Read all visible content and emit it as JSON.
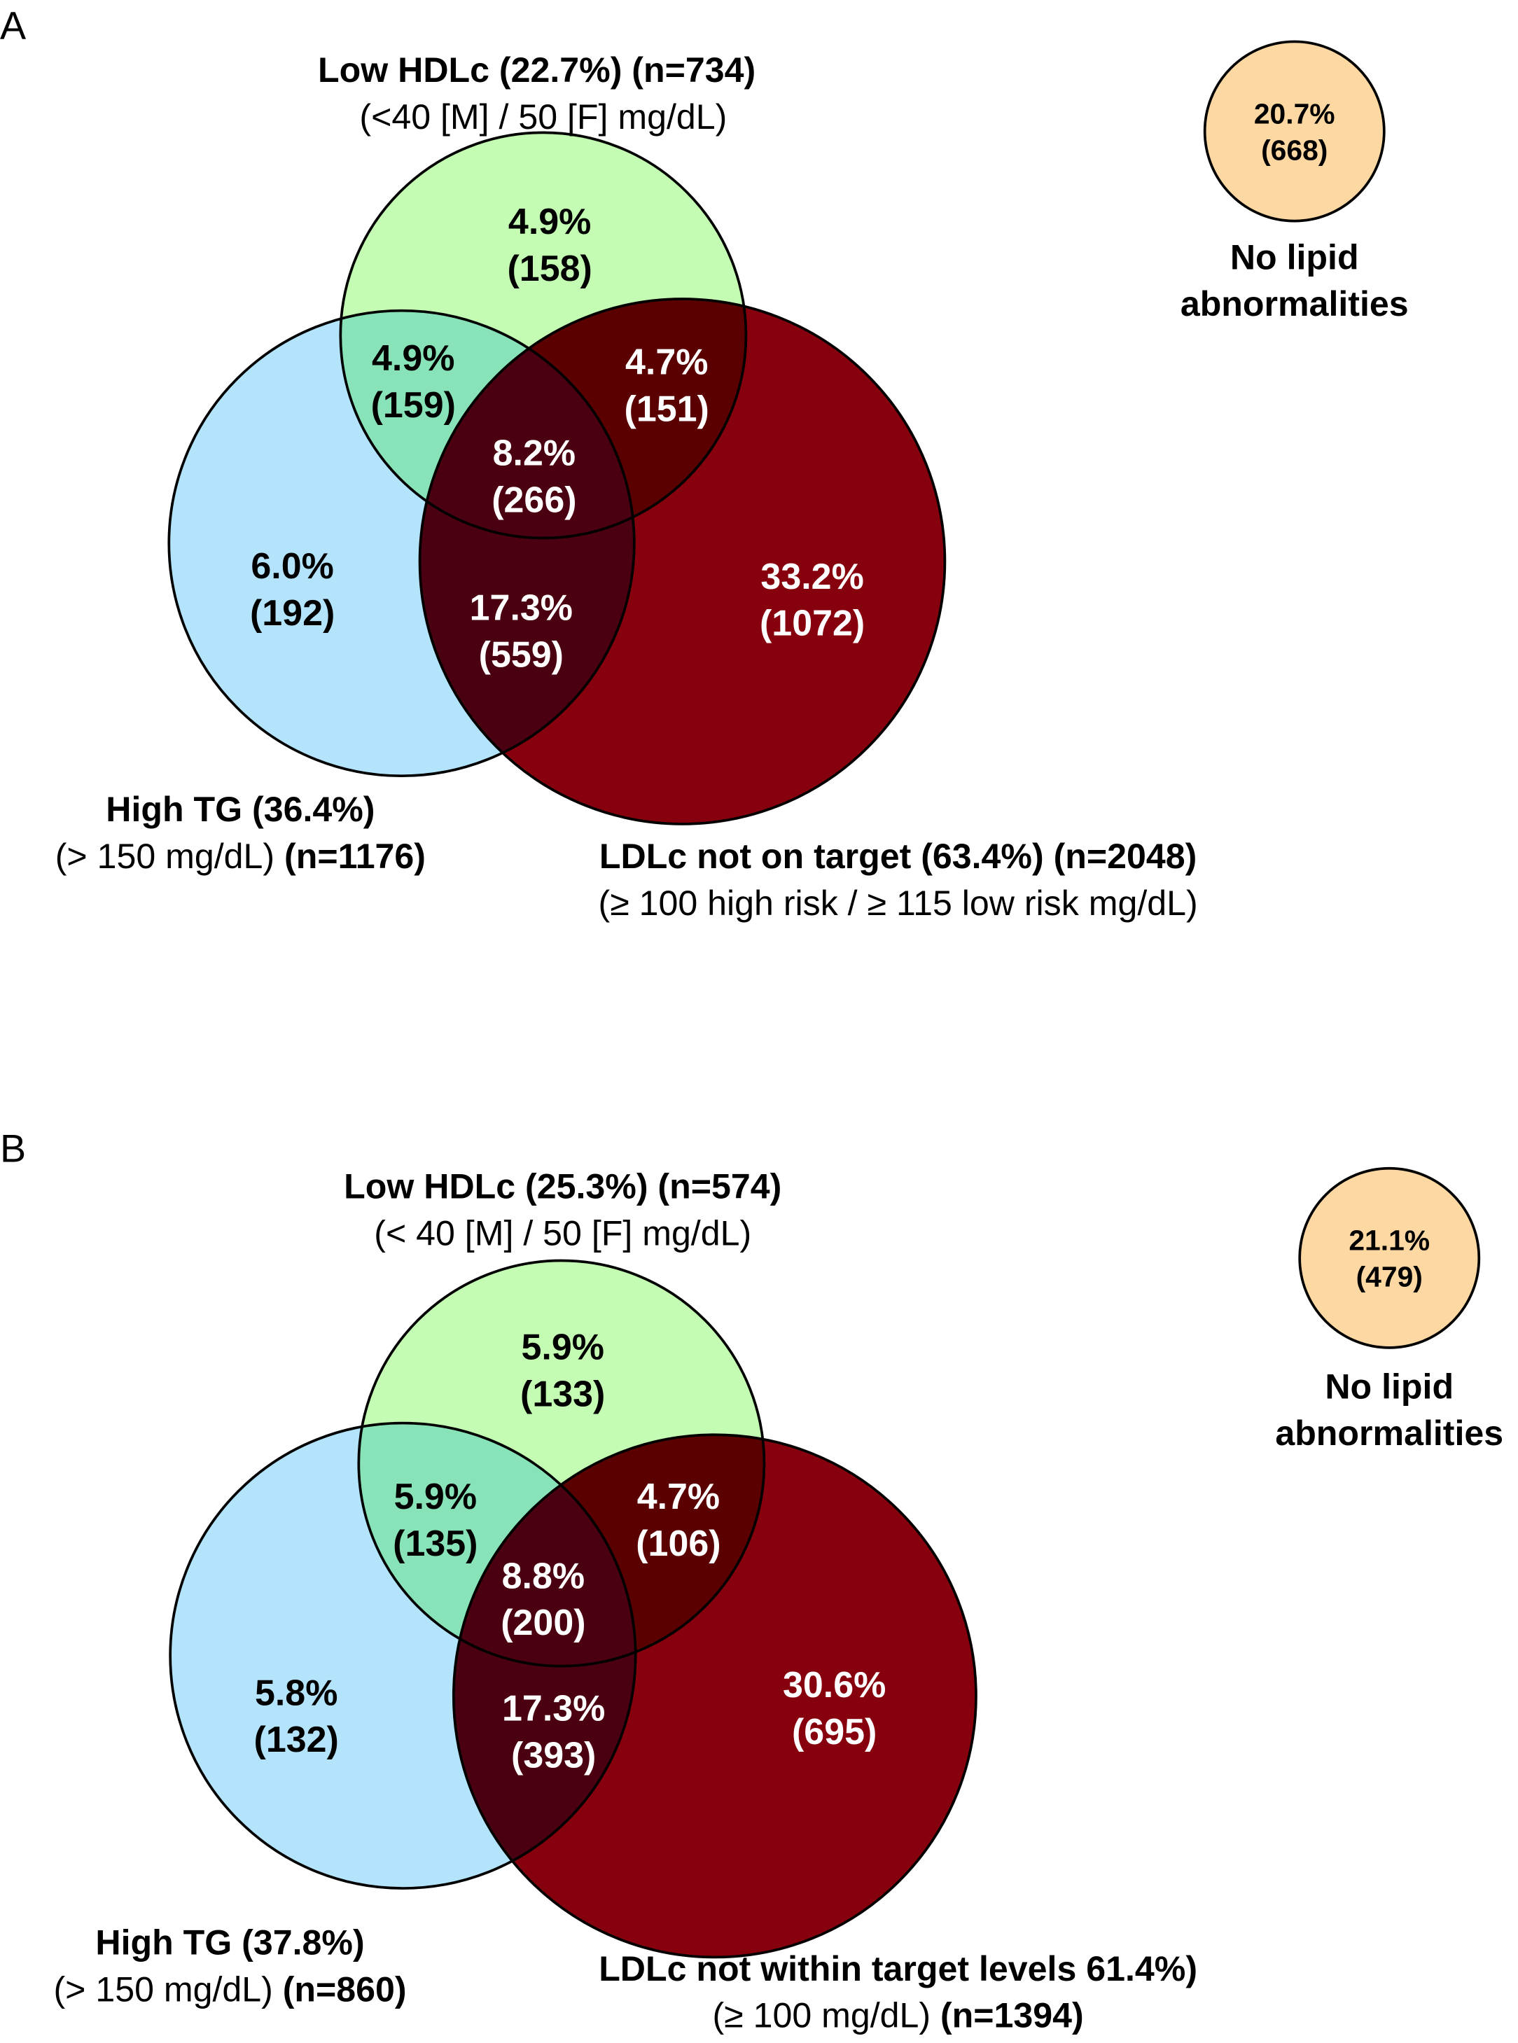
{
  "colors": {
    "hdl": "#c3fcb2",
    "tg": "#b4e4fb",
    "ldl": "#87000d",
    "hdl_tg": "#88e4b8",
    "hdl_ldl": "#5a0000",
    "tg_ldl": "#4a0010",
    "all": "#300005",
    "none": "#fdd8a2"
  },
  "panels": [
    {
      "letter": "A",
      "hdl_title": "Low HDLc (22.7%) (n=734)",
      "hdl_sub": "(<40 [M] / 50 [F] mg/dL)",
      "tg_title": "High TG (36.4%)",
      "tg_sub": "(> 150 mg/dL) ",
      "tg_n": "(n=1176)",
      "ldl_title": "LDLc not on target (63.4%) (n=2048)",
      "ldl_sub": "(≥ 100 high risk / ≥ 115 low risk mg/dL)",
      "ldl_n": "",
      "regions": {
        "hdl_only": [
          "4.9%",
          "(158)"
        ],
        "tg_only": [
          "6.0%",
          "(192)"
        ],
        "ldl_only": [
          "33.2%",
          "(1072)"
        ],
        "hdl_tg": [
          "4.9%",
          "(159)"
        ],
        "hdl_ldl": [
          "4.7%",
          "(151)"
        ],
        "tg_ldl": [
          "17.3%",
          "(559)"
        ],
        "all": [
          "8.2%",
          "(266)"
        ]
      },
      "none": {
        "pct": "20.7%",
        "n": "(668)",
        "label1": "No lipid",
        "label2": "abnormalities"
      }
    },
    {
      "letter": "B",
      "hdl_title": "Low HDLc (25.3%) (n=574)",
      "hdl_sub": "(< 40 [M] / 50 [F] mg/dL)",
      "tg_title": "High TG (37.8%)",
      "tg_sub": "(> 150 mg/dL) ",
      "tg_n": "(n=860)",
      "ldl_title": "LDLc not within target levels 61.4%)",
      "ldl_sub": "(≥ 100 mg/dL) ",
      "ldl_n": "(n=1394)",
      "regions": {
        "hdl_only": [
          "5.9%",
          "(133)"
        ],
        "tg_only": [
          "5.8%",
          "(132)"
        ],
        "ldl_only": [
          "30.6%",
          "(695)"
        ],
        "hdl_tg": [
          "5.9%",
          "(135)"
        ],
        "hdl_ldl": [
          "4.7%",
          "(106)"
        ],
        "tg_ldl": [
          "17.3%",
          "(393)"
        ],
        "all": [
          "8.8%",
          "(200)"
        ]
      },
      "none": {
        "pct": "21.1%",
        "n": "(479)",
        "label1": "No lipid",
        "label2": "abnormalities"
      }
    }
  ]
}
